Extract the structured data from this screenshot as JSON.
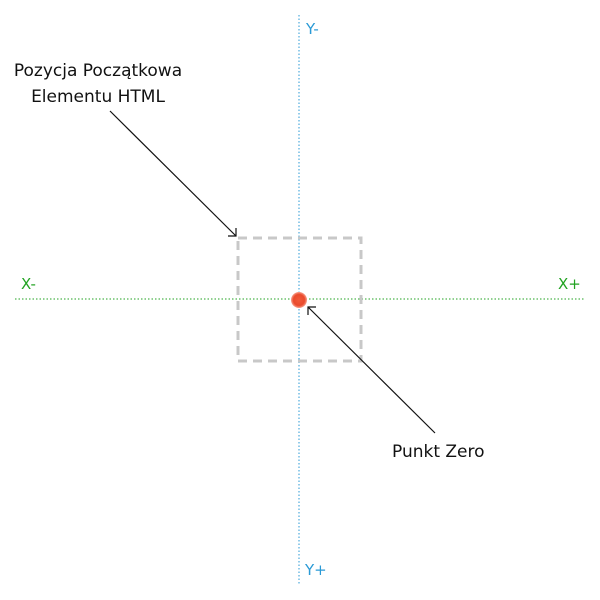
{
  "axes": {
    "x_negative_label": "X-",
    "x_positive_label": "X+",
    "y_negative_label": "Y-",
    "y_positive_label": "Y+"
  },
  "annotations": {
    "initial_position_line1": "Pozycja Początkowa",
    "initial_position_line2": "Elementu HTML",
    "zero_point": "Punkt Zero"
  },
  "colors": {
    "x_axis": "#22a322",
    "y_axis": "#2a9ad6",
    "element_box": "#c8c8c8",
    "zero_point": "#ea4a2c",
    "arrow": "#111111"
  },
  "icons": {
    "zero_point_marker": "dot-icon",
    "arrow_head": "arrow-head-icon"
  }
}
